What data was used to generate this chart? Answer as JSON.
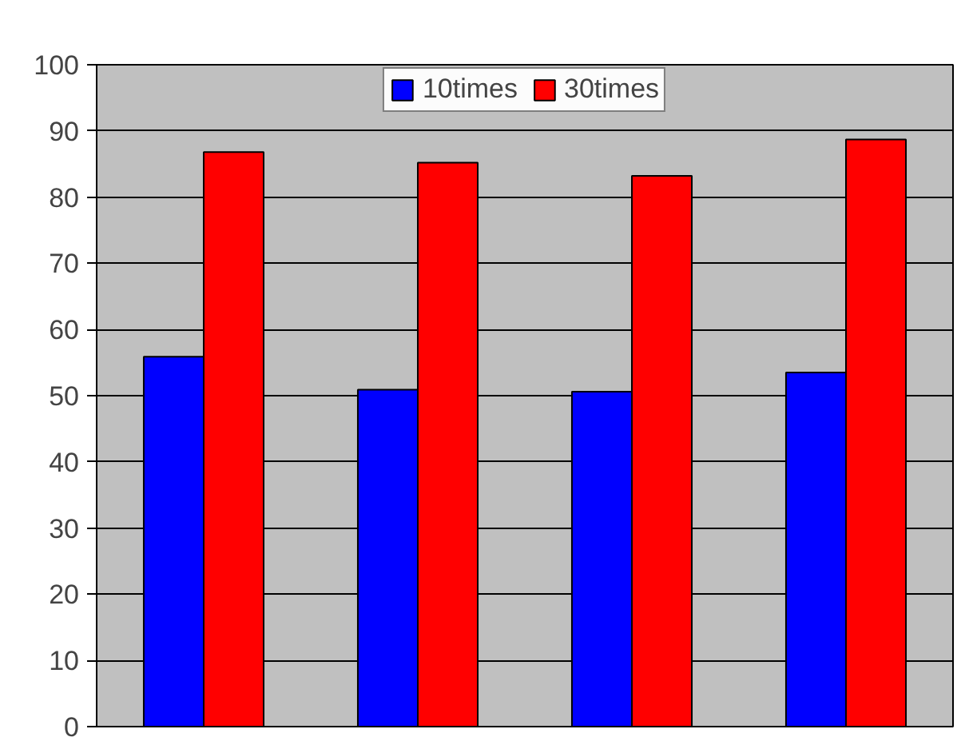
{
  "chart_data": {
    "type": "bar",
    "categories": [
      null,
      null,
      null,
      null
    ],
    "series": [
      {
        "name": "10times",
        "color": "#0000ff",
        "values": [
          55.9,
          50.9,
          50.6,
          53.5
        ]
      },
      {
        "name": "30times",
        "color": "#ff0000",
        "values": [
          86.8,
          85.2,
          83.2,
          88.7
        ]
      }
    ],
    "ylim": [
      0,
      100
    ],
    "yticks": [
      0,
      10,
      20,
      30,
      40,
      50,
      60,
      70,
      80,
      90,
      100
    ],
    "grid": "y",
    "legend": "top"
  }
}
